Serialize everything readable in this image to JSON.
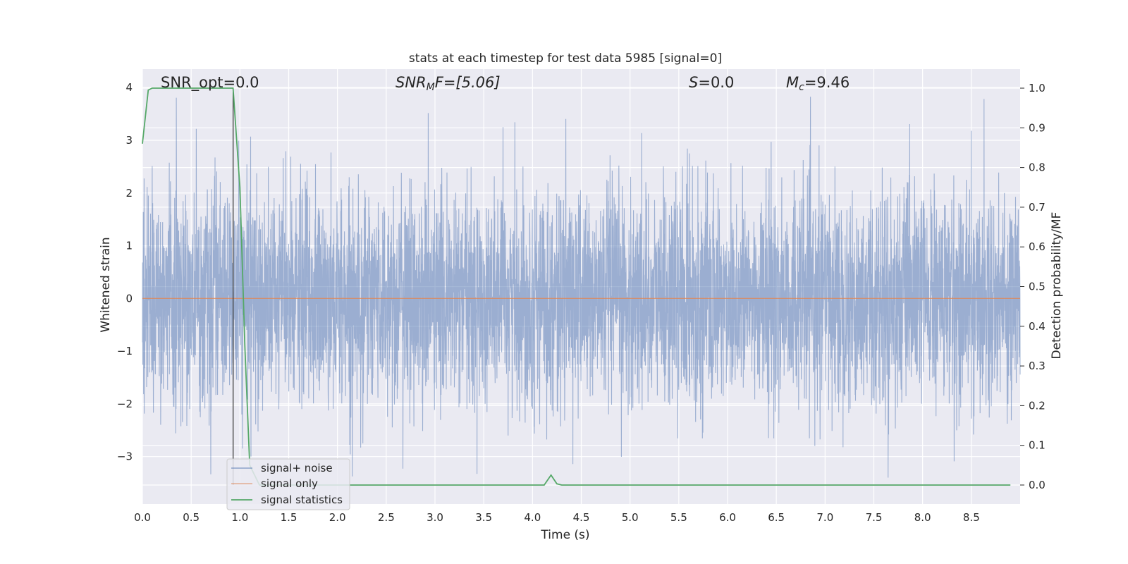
{
  "chart_data": {
    "type": "line",
    "title": "stats at each timestep for test data 5985 [signal=0]",
    "xlabel": "Time (s)",
    "ylabel": "Whitened strain",
    "y2label": "Detection probability/MF",
    "xlim": [
      0.0,
      9.0
    ],
    "ylim": [
      -3.9,
      4.35
    ],
    "y2lim": [
      -0.048,
      1.048
    ],
    "xticks": [
      "0.0",
      "0.5",
      "1.0",
      "1.5",
      "2.0",
      "2.5",
      "3.0",
      "3.5",
      "4.0",
      "4.5",
      "5.0",
      "5.5",
      "6.0",
      "6.5",
      "7.0",
      "7.5",
      "8.0",
      "8.5"
    ],
    "yticks": [
      "4",
      "3",
      "2",
      "1",
      "0",
      "−1",
      "−2",
      "−3"
    ],
    "y2ticks": [
      "1.0",
      "0.9",
      "0.8",
      "0.7",
      "0.6",
      "0.5",
      "0.4",
      "0.3",
      "0.2",
      "0.1",
      "0.0"
    ],
    "grid": true,
    "legend_position": "lower-left",
    "annotations": {
      "snr_opt": "SNR_opt=0.0",
      "snr_mf_main": "SNR",
      "snr_mf_sub": "M",
      "snr_mf_rest": "F=[5.06]",
      "s_main": "S",
      "s_rest": "=0.0",
      "mc_main": "M",
      "mc_sub": "c",
      "mc_rest": "=9.46"
    },
    "vertical_line_x": 0.93,
    "series": [
      {
        "name": "signal+ noise",
        "color": "#4c72b0",
        "axis": "left",
        "style": "noise",
        "envelope_std": 1.0,
        "envelope_max": 4.0,
        "envelope_min": -3.5
      },
      {
        "name": "signal only",
        "color": "#dd8452",
        "axis": "left",
        "x": [
          0.0,
          9.0
        ],
        "values": [
          0.0,
          0.0
        ]
      },
      {
        "name": "signal statistics",
        "color": "#55a868",
        "axis": "right",
        "x": [
          0.0,
          0.06,
          0.1,
          0.3,
          0.6,
          0.9,
          0.93,
          1.0,
          1.05,
          1.1,
          1.2,
          1.5,
          2.0,
          3.0,
          4.0,
          4.12,
          4.19,
          4.25,
          4.3,
          5.0,
          6.0,
          7.0,
          8.0,
          8.9
        ],
        "values": [
          0.86,
          0.995,
          1.0,
          1.0,
          1.0,
          1.0,
          1.0,
          0.75,
          0.35,
          0.05,
          0.0,
          0.0,
          0.0,
          0.0,
          0.0,
          0.0,
          0.025,
          0.003,
          0.0,
          0.0,
          0.0,
          0.0,
          0.0,
          0.0
        ]
      }
    ]
  }
}
